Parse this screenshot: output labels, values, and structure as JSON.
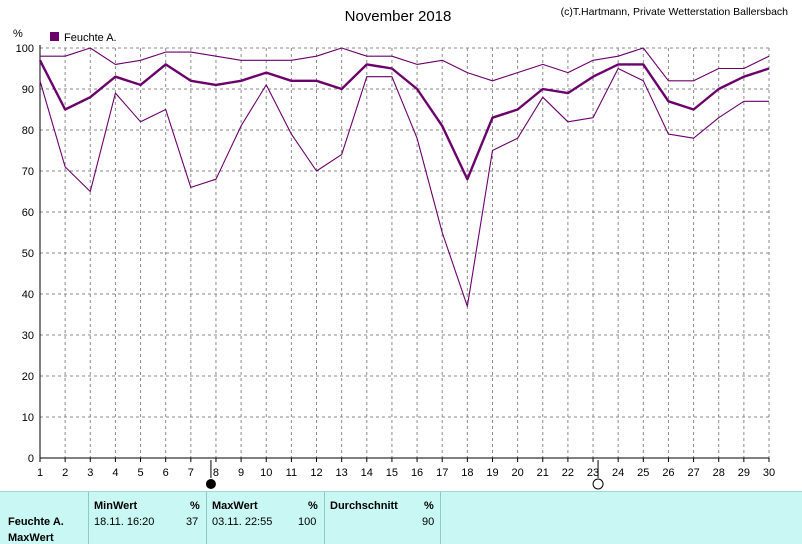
{
  "chart_data": {
    "type": "line",
    "title": "November 2018",
    "copyright": "(c)T.Hartmann, Private Wetterstation Ballersbach",
    "ylabel": "%",
    "ylim": [
      0,
      100
    ],
    "yticks": [
      0,
      10,
      20,
      30,
      40,
      50,
      60,
      70,
      80,
      90,
      100
    ],
    "x": [
      1,
      2,
      3,
      4,
      5,
      6,
      7,
      8,
      9,
      10,
      11,
      12,
      13,
      14,
      15,
      16,
      17,
      18,
      19,
      20,
      21,
      22,
      23,
      24,
      25,
      26,
      27,
      28,
      29,
      30
    ],
    "xlim": [
      1,
      30
    ],
    "grid": true,
    "legend": "top-left",
    "legend_label": "Feuchte A.",
    "color": "#6b006b",
    "series": [
      {
        "name": "Feuchte A.",
        "role": "average",
        "values": [
          97,
          85,
          88,
          93,
          91,
          96,
          92,
          91,
          92,
          94,
          92,
          92,
          90,
          96,
          95,
          90,
          81,
          68,
          83,
          85,
          90,
          89,
          93,
          96,
          96,
          87,
          85,
          90,
          93,
          95
        ]
      },
      {
        "role": "max",
        "values": [
          98,
          98,
          100,
          96,
          97,
          99,
          99,
          98,
          97,
          97,
          97,
          98,
          100,
          98,
          98,
          96,
          97,
          94,
          92,
          94,
          96,
          94,
          97,
          98,
          100,
          92,
          92,
          95,
          95,
          98
        ]
      },
      {
        "role": "min",
        "values": [
          92,
          71,
          65,
          89,
          82,
          85,
          66,
          68,
          81,
          91,
          79,
          70,
          74,
          93,
          93,
          78,
          55,
          37,
          75,
          78,
          88,
          82,
          83,
          95,
          92,
          79,
          78,
          83,
          87,
          87
        ]
      }
    ],
    "moon_markers": [
      {
        "day": 7.8,
        "phase": "new-moon"
      },
      {
        "day": 23.2,
        "phase": "full-moon"
      }
    ]
  },
  "stats": {
    "row_label": "Feuchte A.",
    "row_label_2": "MaxWert",
    "min_header": "MinWert",
    "min_unit": "%",
    "min_time": "18.11.  16:20",
    "min_value": "37",
    "max_header": "MaxWert",
    "max_unit": "%",
    "max_time": "03.11.  22:55",
    "max_value": "100",
    "avg_header": "Durchschnitt",
    "avg_unit": "%",
    "avg_value": "90"
  }
}
